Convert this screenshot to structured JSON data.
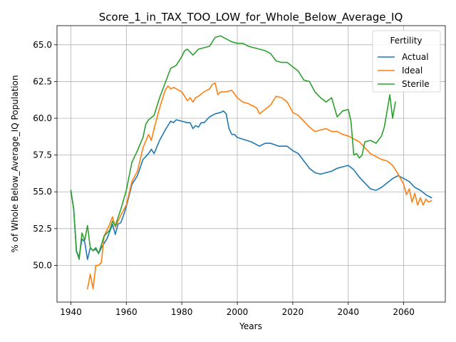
{
  "chart_data": {
    "type": "line",
    "title": "Score_1_in_TAX_TOO_LOW_for_Whole_Below_Average_IQ",
    "xlabel": "Years",
    "ylabel": "% of Whole Below_Average_IQ Population",
    "xlim": [
      1935,
      2075
    ],
    "ylim": [
      47.5,
      66.3
    ],
    "xticks": [
      1940,
      1960,
      1980,
      2000,
      2020,
      2040,
      2060
    ],
    "yticks": [
      50.0,
      52.5,
      55.0,
      57.5,
      60.0,
      62.5,
      65.0
    ],
    "ytick_labels": [
      "50.0",
      "52.5",
      "55.0",
      "57.5",
      "60.0",
      "62.5",
      "65.0"
    ],
    "grid": true,
    "legend": {
      "title": "Fertility",
      "placement": "top-right"
    },
    "series": [
      {
        "name": "Actual",
        "color": "#1f77b4",
        "x": [
          1940,
          1941,
          1942,
          1943,
          1944,
          1945,
          1946,
          1947,
          1948,
          1949,
          1950,
          1951,
          1952,
          1953,
          1954,
          1955,
          1956,
          1957,
          1958,
          1959,
          1960,
          1962,
          1964,
          1966,
          1968,
          1969,
          1970,
          1972,
          1974,
          1976,
          1977,
          1978,
          1980,
          1982,
          1983,
          1984,
          1985,
          1986,
          1987,
          1988,
          1990,
          1992,
          1994,
          1995,
          1996,
          1997,
          1998,
          1999,
          2000,
          2005,
          2008,
          2010,
          2012,
          2015,
          2018,
          2020,
          2022,
          2024,
          2026,
          2028,
          2030,
          2032,
          2034,
          2036,
          2038,
          2040,
          2042,
          2044,
          2046,
          2048,
          2050,
          2052,
          2054,
          2056,
          2058,
          2060,
          2062,
          2064,
          2066,
          2068,
          2070
        ],
        "values": [
          55.0,
          53.9,
          50.9,
          50.6,
          51.8,
          51.6,
          50.4,
          51.2,
          51.0,
          51.1,
          50.8,
          51.2,
          51.5,
          51.8,
          52.3,
          52.8,
          52.1,
          52.8,
          52.9,
          53.4,
          54.0,
          55.5,
          56.1,
          57.2,
          57.6,
          57.9,
          57.6,
          58.5,
          59.2,
          59.8,
          59.7,
          59.9,
          59.8,
          59.7,
          59.7,
          59.3,
          59.5,
          59.4,
          59.7,
          59.7,
          60.1,
          60.3,
          60.4,
          60.5,
          60.3,
          59.3,
          58.9,
          58.9,
          58.7,
          58.4,
          58.1,
          58.3,
          58.3,
          58.1,
          58.1,
          57.8,
          57.6,
          57.1,
          56.6,
          56.3,
          56.2,
          56.3,
          56.4,
          56.6,
          56.7,
          56.8,
          56.5,
          56.0,
          55.6,
          55.2,
          55.1,
          55.3,
          55.6,
          55.9,
          56.1,
          55.9,
          55.7,
          55.3,
          55.1,
          54.8,
          54.6
        ]
      },
      {
        "name": "Ideal",
        "color": "#ff7f0e",
        "x": [
          1946,
          1947,
          1948,
          1949,
          1950,
          1951,
          1952,
          1953,
          1954,
          1955,
          1956,
          1958,
          1960,
          1962,
          1964,
          1966,
          1968,
          1969,
          1970,
          1972,
          1974,
          1975,
          1976,
          1977,
          1978,
          1980,
          1982,
          1983,
          1984,
          1985,
          1986,
          1988,
          1990,
          1991,
          1992,
          1993,
          1994,
          1996,
          1998,
          2000,
          2002,
          2004,
          2006,
          2007,
          2008,
          2010,
          2012,
          2014,
          2016,
          2018,
          2020,
          2022,
          2024,
          2026,
          2028,
          2030,
          2032,
          2034,
          2036,
          2038,
          2040,
          2042,
          2044,
          2046,
          2048,
          2050,
          2052,
          2054,
          2056,
          2058,
          2060,
          2061,
          2062,
          2063,
          2064,
          2065,
          2066,
          2067,
          2068,
          2069,
          2070
        ],
        "values": [
          48.4,
          49.4,
          48.4,
          50.0,
          50.0,
          50.2,
          52.0,
          52.4,
          52.8,
          53.3,
          52.6,
          53.4,
          54.1,
          55.7,
          56.4,
          58.0,
          58.9,
          58.5,
          59.3,
          60.7,
          61.9,
          62.2,
          62.0,
          62.1,
          62.0,
          61.8,
          61.2,
          61.4,
          61.1,
          61.4,
          61.5,
          61.8,
          62.0,
          62.3,
          62.4,
          61.6,
          61.8,
          61.8,
          61.9,
          61.4,
          61.1,
          61.0,
          60.8,
          60.7,
          60.3,
          60.6,
          60.9,
          61.5,
          61.4,
          61.1,
          60.4,
          60.2,
          59.8,
          59.4,
          59.1,
          59.2,
          59.3,
          59.1,
          59.1,
          58.9,
          58.8,
          58.6,
          58.4,
          58.0,
          57.6,
          57.4,
          57.2,
          57.1,
          56.8,
          56.2,
          55.5,
          54.8,
          55.2,
          54.3,
          54.9,
          54.1,
          54.6,
          54.1,
          54.5,
          54.3,
          54.4
        ]
      },
      {
        "name": "Sterile",
        "color": "#2ca02c",
        "x": [
          1940,
          1941,
          1942,
          1943,
          1944,
          1945,
          1946,
          1947,
          1948,
          1949,
          1950,
          1952,
          1954,
          1955,
          1956,
          1958,
          1960,
          1962,
          1964,
          1966,
          1967,
          1968,
          1970,
          1972,
          1974,
          1976,
          1978,
          1980,
          1981,
          1982,
          1984,
          1986,
          1988,
          1990,
          1992,
          1994,
          1996,
          1998,
          2000,
          2002,
          2004,
          2006,
          2008,
          2010,
          2012,
          2014,
          2016,
          2018,
          2020,
          2022,
          2024,
          2026,
          2028,
          2030,
          2032,
          2034,
          2036,
          2038,
          2040,
          2041,
          2042,
          2043,
          2044,
          2045,
          2046,
          2048,
          2050,
          2052,
          2053,
          2054,
          2055,
          2056,
          2057
        ],
        "values": [
          55.1,
          53.8,
          51.0,
          50.4,
          52.2,
          51.7,
          52.7,
          51.2,
          51.0,
          51.2,
          50.8,
          52.0,
          52.4,
          53.0,
          52.7,
          53.8,
          55.1,
          57.0,
          57.8,
          58.7,
          59.6,
          59.9,
          60.2,
          61.4,
          62.4,
          63.4,
          63.6,
          64.2,
          64.6,
          64.7,
          64.3,
          64.7,
          64.8,
          64.9,
          65.5,
          65.6,
          65.4,
          65.2,
          65.1,
          65.1,
          64.9,
          64.8,
          64.7,
          64.6,
          64.4,
          63.9,
          63.8,
          63.8,
          63.5,
          63.2,
          62.6,
          62.5,
          61.8,
          61.4,
          61.1,
          61.4,
          60.1,
          60.5,
          60.6,
          59.8,
          57.5,
          57.6,
          57.3,
          57.5,
          58.4,
          58.5,
          58.3,
          58.8,
          59.4,
          60.5,
          61.6,
          60.0,
          61.1
        ]
      }
    ]
  }
}
